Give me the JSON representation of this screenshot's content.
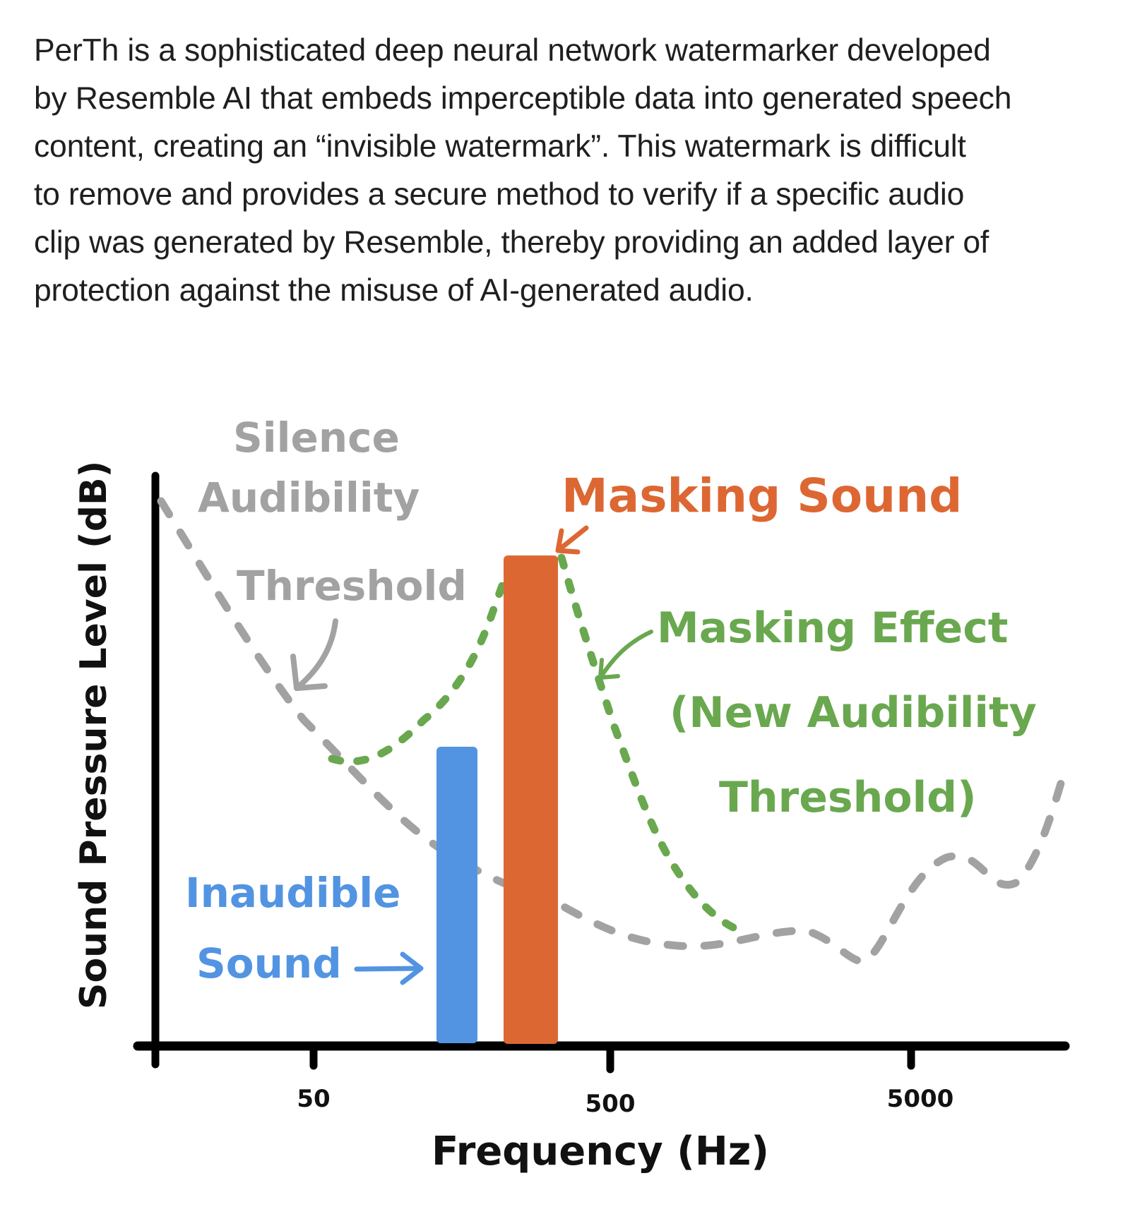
{
  "paragraph": {
    "lines": [
      "PerTh is a sophisticated deep neural network watermarker developed",
      "by Resemble AI that embeds imperceptible data into generated speech",
      "content, creating an “invisible watermark”. This watermark is difficult",
      "to remove and provides a secure method to verify if a specific audio",
      "clip was generated by Resemble, thereby providing an added layer of",
      "protection against the misuse of AI-generated audio."
    ]
  },
  "diagram": {
    "y_axis_label": "Sound Pressure Level (dB)",
    "x_axis_label": "Frequency (Hz)",
    "x_ticks": [
      "50",
      "500",
      "5000"
    ],
    "labels": {
      "silence_line1": "Silence",
      "silence_line2": "Audibility",
      "silence_line3": "Threshold",
      "masking_sound": "Masking Sound",
      "masking_effect_line1": "Masking Effect",
      "masking_effect_line2": "(New Audibility",
      "masking_effect_line3": "Threshold)",
      "inaudible_line1": "Inaudible",
      "inaudible_line2": "Sound"
    },
    "colors": {
      "axis": "#000000",
      "silence_curve": "#9e9e9e",
      "masking_sound": "#dd6733",
      "masking_effect": "#6aa84f",
      "inaudible_sound": "#5294e2",
      "text": "#1f1f1f"
    }
  }
}
